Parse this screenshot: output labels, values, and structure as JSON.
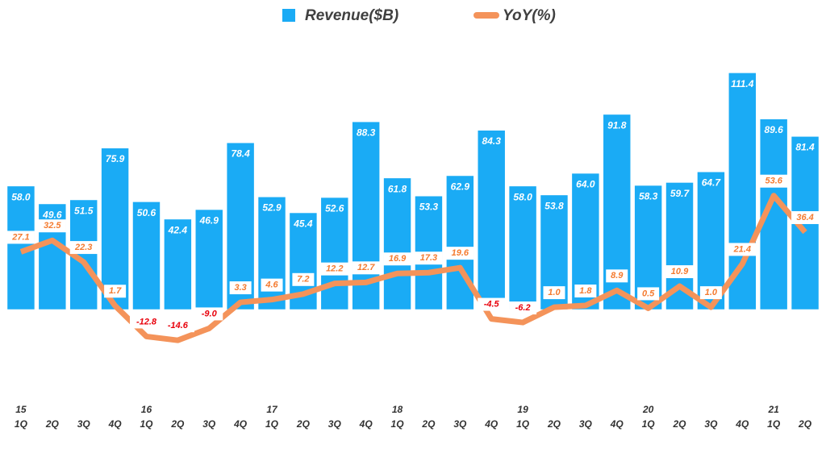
{
  "chart_data": {
    "type": "bar-line",
    "categories": [
      "1Q",
      "2Q",
      "3Q",
      "4Q",
      "1Q",
      "2Q",
      "3Q",
      "4Q",
      "1Q",
      "2Q",
      "3Q",
      "4Q",
      "1Q",
      "2Q",
      "3Q",
      "4Q",
      "1Q",
      "2Q",
      "3Q",
      "4Q",
      "1Q",
      "2Q",
      "3Q",
      "4Q",
      "1Q",
      "2Q"
    ],
    "year_labels": [
      "15",
      null,
      null,
      null,
      "16",
      null,
      null,
      null,
      "17",
      null,
      null,
      null,
      "18",
      null,
      null,
      null,
      "19",
      null,
      null,
      null,
      "20",
      null,
      null,
      null,
      "21",
      null
    ],
    "series": [
      {
        "name": "Revenue($B)",
        "type": "bar",
        "color": "#1aabf5",
        "values": [
          58.0,
          49.6,
          51.5,
          75.9,
          50.6,
          42.4,
          46.9,
          78.4,
          52.9,
          45.4,
          52.6,
          88.3,
          61.8,
          53.3,
          62.9,
          84.3,
          58.0,
          53.8,
          64.0,
          91.8,
          58.3,
          59.7,
          64.7,
          111.4,
          89.6,
          81.4
        ],
        "value_labels": [
          "58.0",
          "49.6",
          "51.5",
          "75.9",
          "50.6",
          "42.4",
          "46.9",
          "78.4",
          "52.9",
          "45.4",
          "52.6",
          "88.3",
          "61.8",
          "53.3",
          "62.9",
          "84.3",
          "58.0",
          "53.8",
          "64.0",
          "91.8",
          "58.3",
          "59.7",
          "64.7",
          "111.4",
          "89.6",
          "81.4"
        ]
      },
      {
        "name": "YoY(%)",
        "type": "line",
        "axis": "y2",
        "color": "#f4935a",
        "label_color": "#f47b30",
        "negative_label_color": "#e8000b",
        "values": [
          27.1,
          32.5,
          22.3,
          1.7,
          -12.8,
          -14.6,
          -9.0,
          3.3,
          4.6,
          7.2,
          12.2,
          12.7,
          16.9,
          17.3,
          19.6,
          -4.5,
          -6.2,
          1.0,
          1.8,
          8.9,
          0.5,
          10.9,
          1.0,
          21.4,
          53.6,
          36.4
        ],
        "value_labels": [
          "27.1",
          "32.5",
          "22.3",
          "1.7",
          "-12.8",
          "-14.6",
          "-9.0",
          "3.3",
          "4.6",
          "7.2",
          "12.2",
          "12.7",
          "16.9",
          "17.3",
          "19.6",
          "-4.5",
          "-6.2",
          "1.0",
          "1.8",
          "8.9",
          "0.5",
          "10.9",
          "1.0",
          "21.4",
          "53.6",
          "36.4"
        ]
      }
    ],
    "ylim": [
      -40,
      120
    ],
    "y2lim": [
      -40,
      120
    ],
    "legend": "top"
  }
}
